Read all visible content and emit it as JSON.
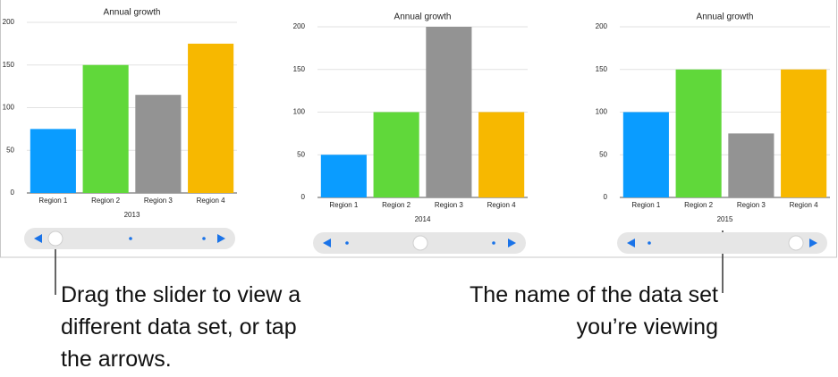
{
  "chart_data": [
    {
      "type": "bar",
      "title": "Annual growth",
      "xlabel": "2013",
      "categories": [
        "Region 1",
        "Region 2",
        "Region 3",
        "Region 4"
      ],
      "values": [
        75,
        150,
        115,
        175
      ],
      "colors": [
        "#0a9cff",
        "#60d83a",
        "#939393",
        "#f7b800"
      ],
      "ylim": [
        0,
        200
      ],
      "yticks": [
        0,
        50,
        100,
        150,
        200
      ],
      "grid": true
    },
    {
      "type": "bar",
      "title": "Annual growth",
      "xlabel": "2014",
      "categories": [
        "Region 1",
        "Region 2",
        "Region 3",
        "Region 4"
      ],
      "values": [
        50,
        100,
        200,
        100
      ],
      "colors": [
        "#0a9cff",
        "#60d83a",
        "#939393",
        "#f7b800"
      ],
      "ylim": [
        0,
        200
      ],
      "yticks": [
        0,
        50,
        100,
        150,
        200
      ],
      "grid": true
    },
    {
      "type": "bar",
      "title": "Annual growth",
      "xlabel": "2015",
      "categories": [
        "Region 1",
        "Region 2",
        "Region 3",
        "Region 4"
      ],
      "values": [
        100,
        150,
        75,
        150
      ],
      "colors": [
        "#0a9cff",
        "#60d83a",
        "#939393",
        "#f7b800"
      ],
      "ylim": [
        0,
        200
      ],
      "yticks": [
        0,
        50,
        100,
        150,
        200
      ],
      "grid": true
    }
  ],
  "callouts": [
    "Drag the slider to view a different data set, or tap the arrows.",
    "The name of the data set you’re viewing"
  ]
}
